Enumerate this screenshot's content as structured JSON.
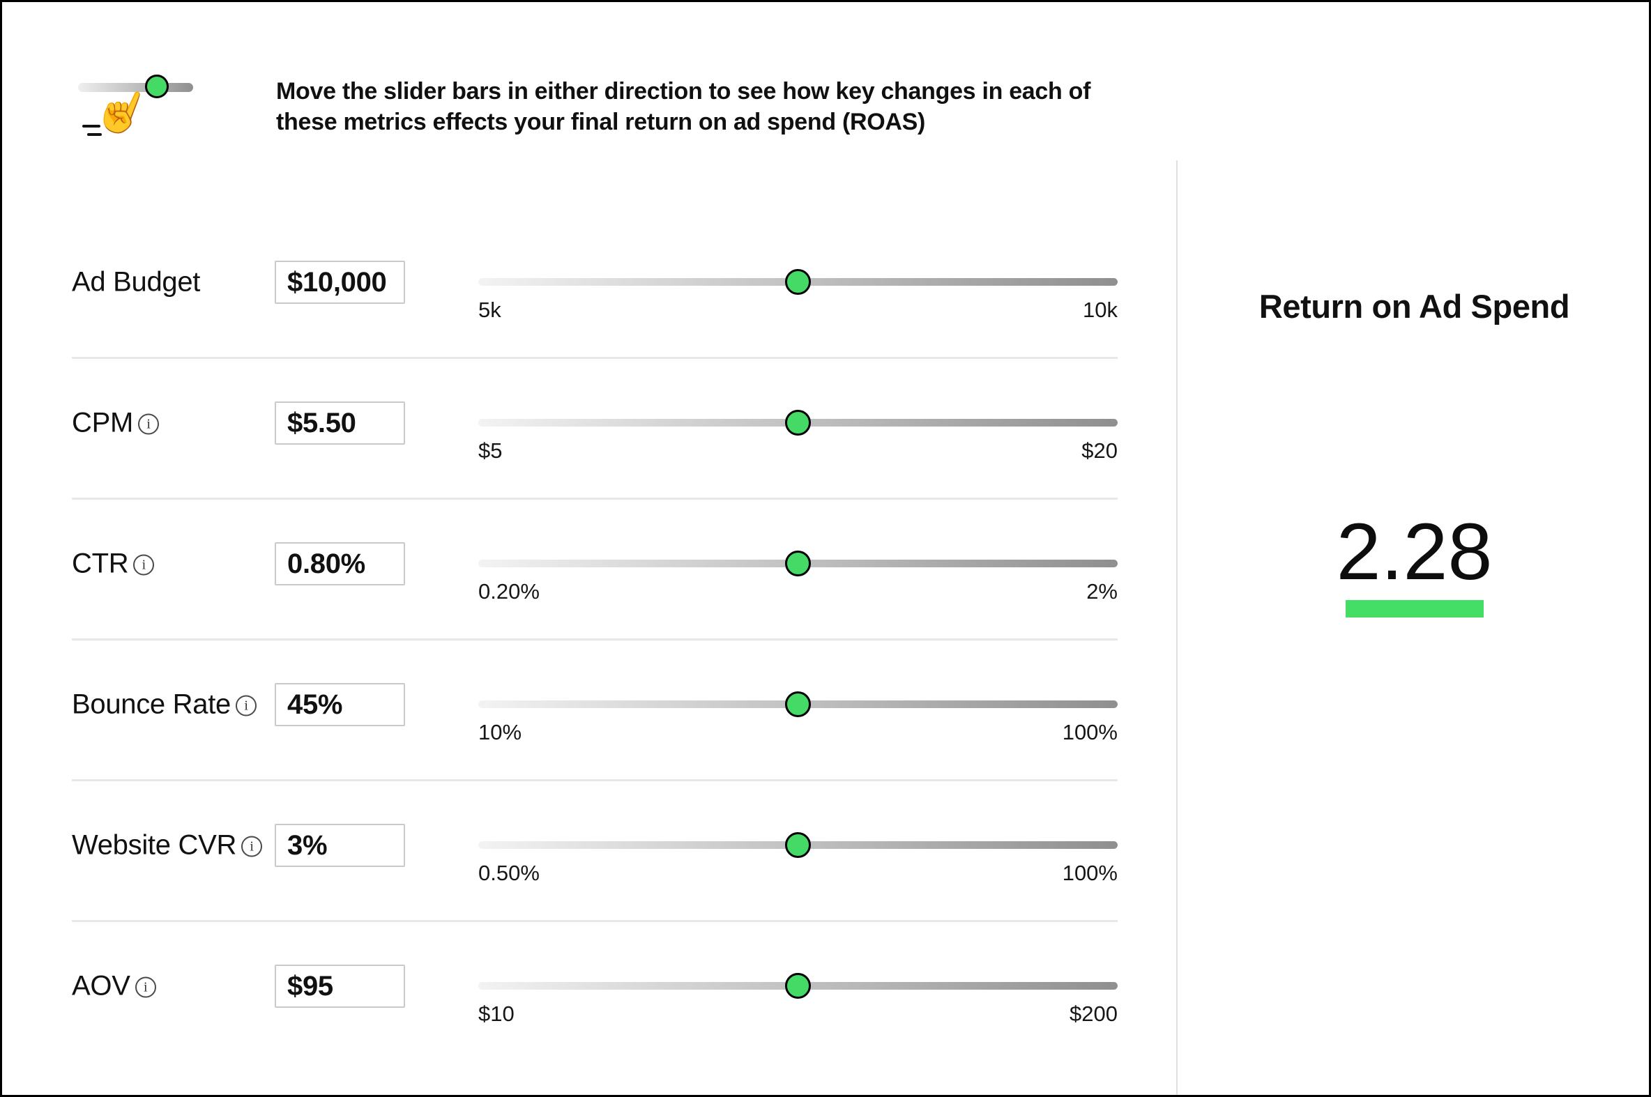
{
  "instructions": {
    "line1": "Move the slider bars in either direction to see how key changes in each of",
    "line2": "these metrics effects your final return on ad spend (ROAS)"
  },
  "sliders": [
    {
      "label": "Ad Budget",
      "info_icon": false,
      "value": "$10,000",
      "min_label": "5k",
      "max_label": "10k",
      "knob_pct": 50
    },
    {
      "label": "CPM",
      "info_icon": true,
      "value": "$5.50",
      "min_label": "$5",
      "max_label": "$20",
      "knob_pct": 50
    },
    {
      "label": "CTR",
      "info_icon": true,
      "value": "0.80%",
      "min_label": "0.20%",
      "max_label": "2%",
      "knob_pct": 50
    },
    {
      "label": "Bounce Rate",
      "info_icon": true,
      "value": "45%",
      "min_label": "10%",
      "max_label": "100%",
      "knob_pct": 50
    },
    {
      "label": "Website CVR",
      "info_icon": true,
      "value": "3%",
      "min_label": "0.50%",
      "max_label": "100%",
      "knob_pct": 50
    },
    {
      "label": "AOV",
      "info_icon": true,
      "value": "$95",
      "min_label": "$10",
      "max_label": "$200",
      "knob_pct": 50
    }
  ],
  "roas_panel": {
    "title": "Return on Ad Spend",
    "value": "2.28"
  },
  "icons": {
    "hand_pointer_glyph": "☝",
    "info_glyph": "i"
  },
  "intro_icon": {
    "knob_pct": 65
  },
  "colors": {
    "accent_green": "#44da65",
    "roas_bar_green": "#44dd66",
    "knob_border": "#000000",
    "track_start": "#f3f3f3",
    "track_end": "#8f8f8f",
    "value_box_border": "#c9c9c9",
    "row_separator": "#e8e8e8",
    "panel_divider": "#e0e0e0",
    "text": "#111111"
  }
}
